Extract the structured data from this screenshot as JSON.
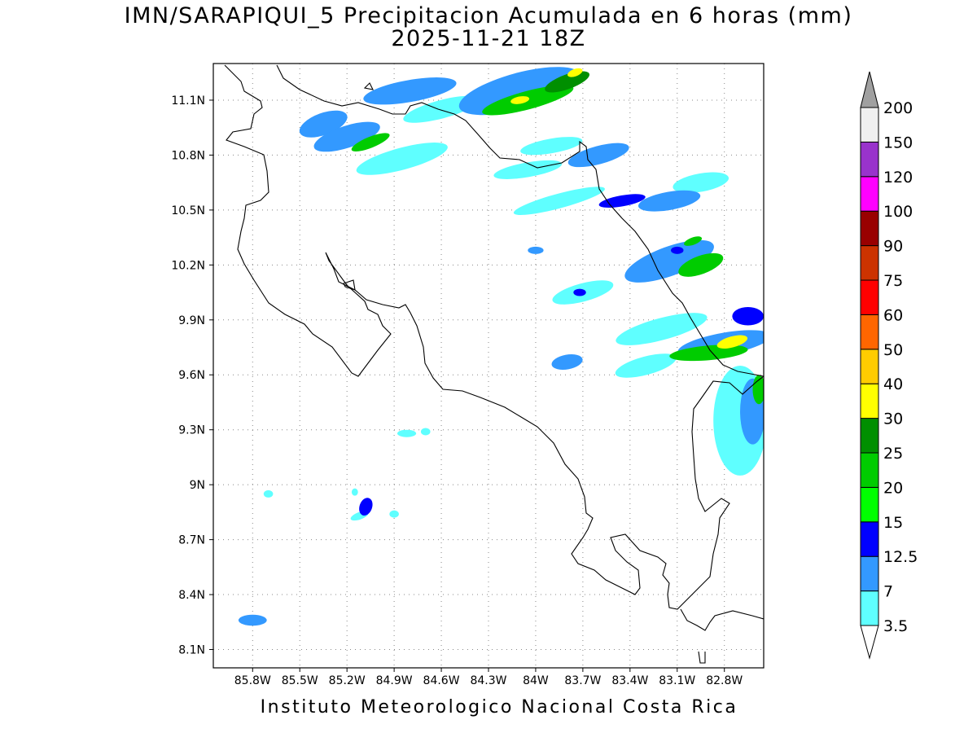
{
  "title": {
    "line1": "IMN/SARAPIQUI_5 Precipitacion Acumulada en 6 horas (mm)",
    "line2": "2025-11-21 18Z"
  },
  "footer": "Instituto Meteorologico Nacional Costa Rica",
  "map": {
    "lon_range": [
      -86.05,
      -82.55
    ],
    "lat_range": [
      8.0,
      11.3
    ],
    "lat_ticks": [
      {
        "value": 11.1,
        "label": "11.1N"
      },
      {
        "value": 10.8,
        "label": "10.8N"
      },
      {
        "value": 10.5,
        "label": "10.5N"
      },
      {
        "value": 10.2,
        "label": "10.2N"
      },
      {
        "value": 9.9,
        "label": "9.9N"
      },
      {
        "value": 9.6,
        "label": "9.6N"
      },
      {
        "value": 9.3,
        "label": "9.3N"
      },
      {
        "value": 9.0,
        "label": "9N"
      },
      {
        "value": 8.7,
        "label": "8.7N"
      },
      {
        "value": 8.4,
        "label": "8.4N"
      },
      {
        "value": 8.1,
        "label": "8.1N"
      }
    ],
    "lon_ticks": [
      {
        "value": -85.8,
        "label": "85.8W"
      },
      {
        "value": -85.5,
        "label": "85.5W"
      },
      {
        "value": -85.2,
        "label": "85.2W"
      },
      {
        "value": -84.9,
        "label": "84.9W"
      },
      {
        "value": -84.6,
        "label": "84.6W"
      },
      {
        "value": -84.3,
        "label": "84.3W"
      },
      {
        "value": -84.0,
        "label": "84W"
      },
      {
        "value": -83.7,
        "label": "83.7W"
      },
      {
        "value": -83.4,
        "label": "83.4W"
      },
      {
        "value": -83.1,
        "label": "83.1W"
      },
      {
        "value": -82.8,
        "label": "82.8W"
      }
    ],
    "grid": true,
    "precip_cells": [
      {
        "lon": -85.35,
        "lat": 10.97,
        "rx": 0.16,
        "ry": 0.06,
        "value": 7,
        "rot": -20
      },
      {
        "lon": -85.2,
        "lat": 10.9,
        "rx": 0.22,
        "ry": 0.06,
        "value": 7,
        "rot": -18
      },
      {
        "lon": -85.05,
        "lat": 10.87,
        "rx": 0.13,
        "ry": 0.03,
        "value": 20,
        "rot": -22
      },
      {
        "lon": -84.85,
        "lat": 10.78,
        "rx": 0.3,
        "ry": 0.06,
        "value": 3.5,
        "rot": -15
      },
      {
        "lon": -84.6,
        "lat": 11.05,
        "rx": 0.25,
        "ry": 0.05,
        "value": 3.5,
        "rot": -15
      },
      {
        "lon": -84.8,
        "lat": 11.15,
        "rx": 0.3,
        "ry": 0.06,
        "value": 7,
        "rot": -10
      },
      {
        "lon": -84.1,
        "lat": 11.15,
        "rx": 0.4,
        "ry": 0.1,
        "value": 7,
        "rot": -15
      },
      {
        "lon": -84.05,
        "lat": 11.1,
        "rx": 0.3,
        "ry": 0.05,
        "value": 20,
        "rot": -15
      },
      {
        "lon": -84.1,
        "lat": 11.1,
        "rx": 0.06,
        "ry": 0.02,
        "value": 30,
        "rot": -10
      },
      {
        "lon": -83.8,
        "lat": 11.2,
        "rx": 0.15,
        "ry": 0.04,
        "value": 25,
        "rot": -20
      },
      {
        "lon": -83.75,
        "lat": 11.25,
        "rx": 0.05,
        "ry": 0.02,
        "value": 30,
        "rot": -20
      },
      {
        "lon": -84.05,
        "lat": 10.72,
        "rx": 0.22,
        "ry": 0.04,
        "value": 3.5,
        "rot": -10
      },
      {
        "lon": -83.9,
        "lat": 10.85,
        "rx": 0.2,
        "ry": 0.04,
        "value": 3.5,
        "rot": -10
      },
      {
        "lon": -83.6,
        "lat": 10.8,
        "rx": 0.2,
        "ry": 0.05,
        "value": 7,
        "rot": -15
      },
      {
        "lon": -83.85,
        "lat": 10.55,
        "rx": 0.3,
        "ry": 0.04,
        "value": 3.5,
        "rot": -15
      },
      {
        "lon": -83.45,
        "lat": 10.55,
        "rx": 0.15,
        "ry": 0.03,
        "value": 12.5,
        "rot": -10
      },
      {
        "lon": -83.15,
        "lat": 10.55,
        "rx": 0.2,
        "ry": 0.05,
        "value": 7,
        "rot": -10
      },
      {
        "lon": -82.95,
        "lat": 10.65,
        "rx": 0.18,
        "ry": 0.05,
        "value": 3.5,
        "rot": -10
      },
      {
        "lon": -84.0,
        "lat": 10.28,
        "rx": 0.05,
        "ry": 0.02,
        "value": 7,
        "rot": 0
      },
      {
        "lon": -83.15,
        "lat": 10.22,
        "rx": 0.3,
        "ry": 0.08,
        "value": 7,
        "rot": -20
      },
      {
        "lon": -82.95,
        "lat": 10.2,
        "rx": 0.15,
        "ry": 0.05,
        "value": 20,
        "rot": -20
      },
      {
        "lon": -83.0,
        "lat": 10.33,
        "rx": 0.06,
        "ry": 0.02,
        "value": 20,
        "rot": -20
      },
      {
        "lon": -83.1,
        "lat": 10.28,
        "rx": 0.04,
        "ry": 0.02,
        "value": 12.5,
        "rot": 0
      },
      {
        "lon": -83.7,
        "lat": 10.05,
        "rx": 0.2,
        "ry": 0.05,
        "value": 3.5,
        "rot": -15
      },
      {
        "lon": -83.72,
        "lat": 10.05,
        "rx": 0.04,
        "ry": 0.02,
        "value": 12.5,
        "rot": 0
      },
      {
        "lon": -83.2,
        "lat": 9.85,
        "rx": 0.3,
        "ry": 0.06,
        "value": 3.5,
        "rot": -15
      },
      {
        "lon": -82.8,
        "lat": 9.77,
        "rx": 0.3,
        "ry": 0.06,
        "value": 7,
        "rot": -10
      },
      {
        "lon": -82.9,
        "lat": 9.72,
        "rx": 0.25,
        "ry": 0.04,
        "value": 20,
        "rot": -5
      },
      {
        "lon": -82.75,
        "lat": 9.78,
        "rx": 0.1,
        "ry": 0.03,
        "value": 30,
        "rot": -15
      },
      {
        "lon": -82.65,
        "lat": 9.92,
        "rx": 0.1,
        "ry": 0.05,
        "value": 12.5,
        "rot": 0
      },
      {
        "lon": -83.8,
        "lat": 9.67,
        "rx": 0.1,
        "ry": 0.04,
        "value": 7,
        "rot": -10
      },
      {
        "lon": -83.3,
        "lat": 9.65,
        "rx": 0.2,
        "ry": 0.05,
        "value": 3.5,
        "rot": -15
      },
      {
        "lon": -82.7,
        "lat": 9.35,
        "rx": 0.17,
        "ry": 0.3,
        "value": 3.5,
        "rot": 0
      },
      {
        "lon": -82.62,
        "lat": 9.4,
        "rx": 0.08,
        "ry": 0.18,
        "value": 7,
        "rot": 0
      },
      {
        "lon": -82.58,
        "lat": 9.52,
        "rx": 0.04,
        "ry": 0.08,
        "value": 20,
        "rot": 0
      },
      {
        "lon": -84.82,
        "lat": 9.28,
        "rx": 0.06,
        "ry": 0.02,
        "value": 3.5,
        "rot": 0
      },
      {
        "lon": -84.7,
        "lat": 9.29,
        "rx": 0.03,
        "ry": 0.02,
        "value": 3.5,
        "rot": 0
      },
      {
        "lon": -85.08,
        "lat": 8.88,
        "rx": 0.04,
        "ry": 0.05,
        "value": 12.5,
        "rot": 20
      },
      {
        "lon": -85.12,
        "lat": 8.83,
        "rx": 0.06,
        "ry": 0.02,
        "value": 3.5,
        "rot": -20
      },
      {
        "lon": -85.7,
        "lat": 8.95,
        "rx": 0.03,
        "ry": 0.02,
        "value": 3.5,
        "rot": 0
      },
      {
        "lon": -85.15,
        "lat": 8.96,
        "rx": 0.02,
        "ry": 0.02,
        "value": 3.5,
        "rot": 0
      },
      {
        "lon": -84.9,
        "lat": 8.84,
        "rx": 0.03,
        "ry": 0.02,
        "value": 3.5,
        "rot": 0
      },
      {
        "lon": -85.8,
        "lat": 8.26,
        "rx": 0.09,
        "ry": 0.03,
        "value": 7,
        "rot": 0
      }
    ]
  },
  "colorbar": {
    "levels": [
      {
        "label": "3.5",
        "color": "#5fffff"
      },
      {
        "label": "7",
        "color": "#3399ff"
      },
      {
        "label": "12.5",
        "color": "#0000ff"
      },
      {
        "label": "15",
        "color": "#00ff00"
      },
      {
        "label": "20",
        "color": "#00cc00"
      },
      {
        "label": "25",
        "color": "#008f00"
      },
      {
        "label": "30",
        "color": "#ffff00"
      },
      {
        "label": "40",
        "color": "#ffcc00"
      },
      {
        "label": "50",
        "color": "#ff6600"
      },
      {
        "label": "60",
        "color": "#ff0000"
      },
      {
        "label": "75",
        "color": "#cc3300"
      },
      {
        "label": "90",
        "color": "#990000"
      },
      {
        "label": "100",
        "color": "#ff00ff"
      },
      {
        "label": "120",
        "color": "#9933cc"
      },
      {
        "label": "150",
        "color": "#f0f0f0"
      },
      {
        "label": "200",
        "color": "#a0a0a0"
      }
    ],
    "below_color": "#ffffff"
  }
}
